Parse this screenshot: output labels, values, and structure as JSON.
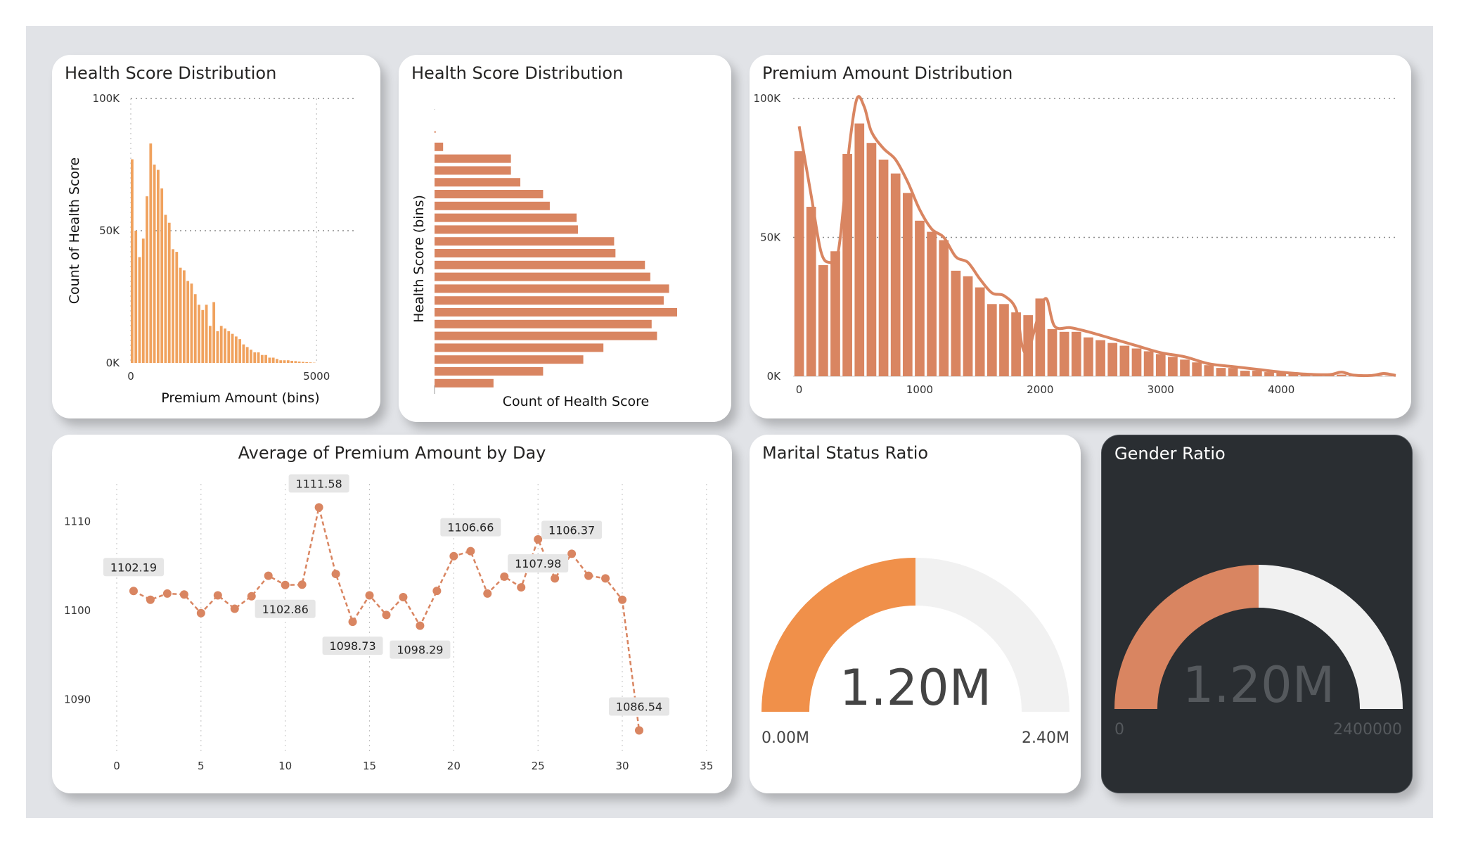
{
  "colors": {
    "bar_light": "#f0a25e",
    "bar": "#d98561",
    "gauge_orange": "#f0904a",
    "gauge_rust": "#d98561",
    "gauge_track": "#f1f1f1",
    "canvas": "#e1e3e7",
    "dark_card": "#2a2e32"
  },
  "cards": {
    "hist1": {
      "title": "Health Score Distribution"
    },
    "hist2": {
      "title": "Health Score Distribution"
    },
    "premium": {
      "title": "Premium Amount Distribution"
    },
    "daily": {
      "title": "Average of Premium Amount by Day"
    },
    "marital": {
      "title": "Marital Status Ratio"
    },
    "gender": {
      "title": "Gender Ratio"
    }
  },
  "chart_data": [
    {
      "id": "hist1",
      "type": "bar",
      "title": "Health Score Distribution",
      "xlabel": "Premium Amount (bins)",
      "ylabel": "Count of Health Score",
      "xlim": [
        0,
        6000
      ],
      "ylim": [
        0,
        100000
      ],
      "x_ticks": [
        {
          "v": 0,
          "label": "0"
        },
        {
          "v": 5000,
          "label": "5000"
        }
      ],
      "y_ticks": [
        {
          "v": 0,
          "label": "0K"
        },
        {
          "v": 50000,
          "label": "50K"
        },
        {
          "v": 100000,
          "label": "100K"
        }
      ],
      "grid": true,
      "bin_width": 100,
      "x": [
        0,
        100,
        200,
        300,
        400,
        500,
        600,
        700,
        800,
        900,
        1000,
        1100,
        1200,
        1300,
        1400,
        1500,
        1600,
        1700,
        1800,
        1900,
        2000,
        2100,
        2200,
        2300,
        2400,
        2500,
        2600,
        2700,
        2800,
        2900,
        3000,
        3100,
        3200,
        3300,
        3400,
        3500,
        3600,
        3700,
        3800,
        3900,
        4000,
        4100,
        4200,
        4300,
        4400,
        4500,
        4600,
        4700,
        4800,
        4900
      ],
      "values": [
        77000,
        50000,
        40000,
        47000,
        63000,
        83000,
        75000,
        73000,
        66000,
        56000,
        53000,
        43000,
        42000,
        36000,
        35000,
        31000,
        30000,
        26000,
        22000,
        20000,
        22000,
        14000,
        23000,
        12000,
        14000,
        13000,
        12000,
        11000,
        10000,
        9000,
        7000,
        6000,
        5000,
        4000,
        4000,
        3000,
        3000,
        2000,
        2000,
        1500,
        1000,
        1000,
        1000,
        800,
        700,
        500,
        400,
        300,
        200,
        100
      ]
    },
    {
      "id": "hist2",
      "type": "bar",
      "orientation": "horizontal",
      "title": "Health Score Distribution",
      "xlabel": "Count of Health Score",
      "ylabel": "Health Score (bins)",
      "values": [
        400,
        3200,
        28500,
        28500,
        32000,
        40500,
        43000,
        53000,
        53500,
        67000,
        67500,
        78500,
        80500,
        87500,
        85500,
        90500,
        81000,
        83000,
        63000,
        55500,
        40500,
        22000
      ]
    },
    {
      "id": "premium",
      "type": "bar",
      "title": "Premium Amount Distribution",
      "xlim": [
        -50,
        4950
      ],
      "ylim": [
        0,
        100000
      ],
      "x_ticks": [
        {
          "v": 0,
          "label": "0"
        },
        {
          "v": 1000,
          "label": "1000"
        },
        {
          "v": 2000,
          "label": "2000"
        },
        {
          "v": 3000,
          "label": "3000"
        },
        {
          "v": 4000,
          "label": "4000"
        }
      ],
      "y_ticks": [
        {
          "v": 0,
          "label": "0K"
        },
        {
          "v": 50000,
          "label": "50K"
        },
        {
          "v": 100000,
          "label": "100K"
        }
      ],
      "grid": true,
      "bin_width": 100,
      "x": [
        0,
        100,
        200,
        300,
        400,
        500,
        600,
        700,
        800,
        900,
        1000,
        1100,
        1200,
        1300,
        1400,
        1500,
        1600,
        1700,
        1800,
        1900,
        2000,
        2100,
        2200,
        2300,
        2400,
        2500,
        2600,
        2700,
        2800,
        2900,
        3000,
        3100,
        3200,
        3300,
        3400,
        3500,
        3600,
        3700,
        3800,
        3900,
        4000,
        4100,
        4200,
        4300,
        4400,
        4500,
        4600,
        4700,
        4800,
        4900
      ],
      "values": [
        81000,
        61000,
        40000,
        45000,
        80000,
        91000,
        84000,
        78000,
        73000,
        66000,
        56000,
        52000,
        49000,
        38000,
        36000,
        32000,
        26000,
        26000,
        23000,
        22000,
        28000,
        17000,
        16000,
        16000,
        14000,
        13000,
        12000,
        11000,
        10000,
        9000,
        8000,
        7000,
        6000,
        5000,
        4000,
        3000,
        3000,
        2000,
        2000,
        1500,
        1200,
        1000,
        900,
        800,
        700,
        600,
        500,
        400,
        300,
        200
      ],
      "line": [
        {
          "x": 0,
          "y": 90000
        },
        {
          "x": 100,
          "y": 65000
        },
        {
          "x": 180,
          "y": 45000
        },
        {
          "x": 250,
          "y": 41000
        },
        {
          "x": 320,
          "y": 44000
        },
        {
          "x": 370,
          "y": 62000
        },
        {
          "x": 420,
          "y": 84000
        },
        {
          "x": 480,
          "y": 100000
        },
        {
          "x": 540,
          "y": 97000
        },
        {
          "x": 600,
          "y": 88000
        },
        {
          "x": 700,
          "y": 82000
        },
        {
          "x": 800,
          "y": 78000
        },
        {
          "x": 900,
          "y": 70000
        },
        {
          "x": 1000,
          "y": 60000
        },
        {
          "x": 1100,
          "y": 53000
        },
        {
          "x": 1200,
          "y": 50000
        },
        {
          "x": 1300,
          "y": 43000
        },
        {
          "x": 1400,
          "y": 41000
        },
        {
          "x": 1500,
          "y": 35000
        },
        {
          "x": 1600,
          "y": 30000
        },
        {
          "x": 1700,
          "y": 29000
        },
        {
          "x": 1800,
          "y": 24000
        },
        {
          "x": 1850,
          "y": 11000
        },
        {
          "x": 1900,
          "y": 9000
        },
        {
          "x": 1980,
          "y": 21000
        },
        {
          "x": 2050,
          "y": 28000
        },
        {
          "x": 2120,
          "y": 18000
        },
        {
          "x": 2250,
          "y": 17500
        },
        {
          "x": 2400,
          "y": 16000
        },
        {
          "x": 2600,
          "y": 13500
        },
        {
          "x": 2800,
          "y": 11000
        },
        {
          "x": 3000,
          "y": 8500
        },
        {
          "x": 3200,
          "y": 7000
        },
        {
          "x": 3400,
          "y": 4500
        },
        {
          "x": 3600,
          "y": 3500
        },
        {
          "x": 3800,
          "y": 2500
        },
        {
          "x": 4000,
          "y": 1500
        },
        {
          "x": 4200,
          "y": 800
        },
        {
          "x": 4400,
          "y": 600
        },
        {
          "x": 4500,
          "y": 1500
        },
        {
          "x": 4600,
          "y": 400
        },
        {
          "x": 4750,
          "y": 300
        },
        {
          "x": 4850,
          "y": 1000
        },
        {
          "x": 4950,
          "y": 300
        }
      ]
    },
    {
      "id": "daily",
      "type": "line",
      "title": "Average of Premium Amount by Day",
      "xlim": [
        0,
        35
      ],
      "ylim": [
        1085,
        1115
      ],
      "x_ticks": [
        {
          "v": 0,
          "label": "0"
        },
        {
          "v": 5,
          "label": "5"
        },
        {
          "v": 10,
          "label": "10"
        },
        {
          "v": 15,
          "label": "15"
        },
        {
          "v": 20,
          "label": "20"
        },
        {
          "v": 25,
          "label": "25"
        },
        {
          "v": 30,
          "label": "30"
        },
        {
          "v": 35,
          "label": "35"
        }
      ],
      "y_ticks": [
        {
          "v": 1090,
          "label": "1090"
        },
        {
          "v": 1100,
          "label": "1100"
        },
        {
          "v": 1110,
          "label": "1110"
        }
      ],
      "grid": true,
      "x": [
        1,
        2,
        3,
        4,
        5,
        6,
        7,
        8,
        9,
        10,
        11,
        12,
        13,
        14,
        15,
        16,
        17,
        18,
        19,
        20,
        21,
        22,
        23,
        24,
        25,
        26,
        27,
        28,
        29,
        30,
        31
      ],
      "values": [
        1102.19,
        1101.2,
        1101.9,
        1101.8,
        1099.7,
        1101.7,
        1100.2,
        1101.6,
        1103.9,
        1102.86,
        1102.9,
        1111.58,
        1104.1,
        1098.73,
        1101.7,
        1099.5,
        1101.5,
        1098.29,
        1102.2,
        1106.1,
        1106.66,
        1101.9,
        1103.8,
        1102.6,
        1107.98,
        1103.6,
        1106.37,
        1103.9,
        1103.6,
        1101.2,
        1086.54
      ],
      "data_labels": [
        {
          "x": 1,
          "text": "1102.19",
          "pos": "above"
        },
        {
          "x": 10,
          "text": "1102.86",
          "pos": "below"
        },
        {
          "x": 12,
          "text": "1111.58",
          "pos": "above"
        },
        {
          "x": 14,
          "text": "1098.73",
          "pos": "below"
        },
        {
          "x": 18,
          "text": "1098.29",
          "pos": "below"
        },
        {
          "x": 21,
          "text": "1106.66",
          "pos": "above"
        },
        {
          "x": 25,
          "text": "1107.98",
          "pos": "below"
        },
        {
          "x": 27,
          "text": "1106.37",
          "pos": "above"
        },
        {
          "x": 31,
          "text": "1086.54",
          "pos": "above"
        }
      ]
    },
    {
      "id": "marital",
      "type": "gauge",
      "title": "Marital Status Ratio",
      "value": 1200000,
      "min": 0,
      "max": 2400000,
      "value_label": "1.20M",
      "min_label": "0.00M",
      "max_label": "2.40M"
    },
    {
      "id": "gender",
      "type": "gauge",
      "title": "Gender Ratio",
      "value": 1200000,
      "min": 0,
      "max": 2400000,
      "value_label": "1.20M",
      "min_label": "0",
      "max_label": "2400000"
    }
  ]
}
